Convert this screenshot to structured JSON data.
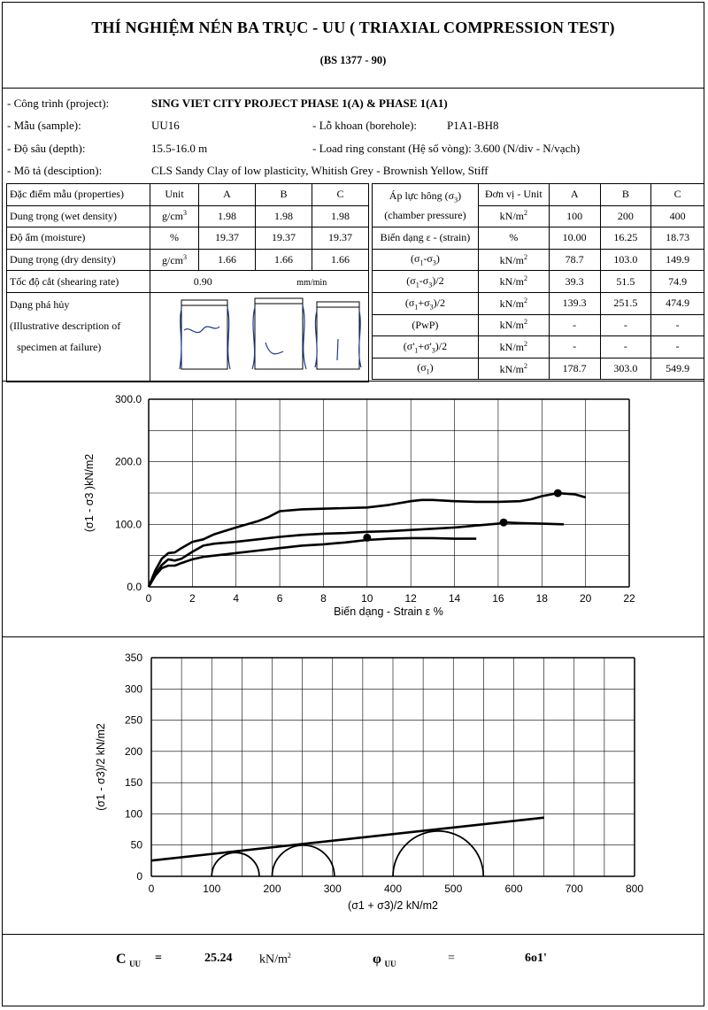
{
  "header": {
    "title": "THÍ NGHIỆM NÉN BA TRỤC - UU ( TRIAXIAL COMPRESSION TEST)",
    "standard": "(BS 1377 - 90)"
  },
  "info": {
    "project_label": "- Công trình (project):",
    "project_value": "SING VIET CITY PROJECT PHASE 1(A) & PHASE 1(A1)",
    "sample_label": "- Mẫu (sample):",
    "sample_value": "UU16",
    "borehole_label": "- Lỗ khoan (borehole):",
    "borehole_value": "P1A1-BH8",
    "depth_label": "- Độ sâu (depth):",
    "depth_value": "15.5-16.0 m",
    "ring_label": "- Load ring constant (Hệ số vòng): 3.600 (N/div - N/vạch)",
    "desc_label": "- Mô tả (desciption):",
    "desc_value": "CLS  Sandy Clay of low plasticity, Whitish Grey - Brownish Yellow, Stiff"
  },
  "props": {
    "h_props": "Đặc điểm mẫu (properties)",
    "h_unit": "Unit",
    "h_a": "A",
    "h_b": "B",
    "h_c": "C",
    "wet_label": "Dung trọng (wet density)",
    "wet_unit": "g/cm",
    "wet": [
      "1.98",
      "1.98",
      "1.98"
    ],
    "moist_label": "Độ ẩm (moisture)",
    "moist_unit": "%",
    "moist": [
      "19.37",
      "19.37",
      "19.37"
    ],
    "dry_label": "Dung trọng (dry density)",
    "dry_unit": "g/cm",
    "dry": [
      "1.66",
      "1.66",
      "1.66"
    ],
    "cube": "3",
    "rate_label": "Tốc độ cắt (shearing rate)",
    "rate_value": "0.90",
    "rate_unit": "mm/min",
    "fail_l1": "Dạng phá hủy",
    "fail_l2": "(Illustrative description of",
    "fail_l3": "specimen at failure)"
  },
  "results": {
    "h_param": "Áp lực hông (σ",
    "h_param_sub": "3",
    "h_param_close": ")",
    "h_param2": "(chamber pressure)",
    "h_unit": "Đơn vị - Unit",
    "h_a": "A",
    "h_b": "B",
    "h_c": "C",
    "unit_kn": "kN/m",
    "sq": "2",
    "rows": [
      {
        "label": "",
        "unit": "kN/m2",
        "vals": [
          "100",
          "200",
          "400"
        ]
      },
      {
        "label": "Biến dạng ε - (strain)",
        "unit": "%",
        "vals": [
          "10.00",
          "16.25",
          "18.73"
        ]
      },
      {
        "label": "(σ1-σ3)",
        "unit": "kN/m2",
        "vals": [
          "78.7",
          "103.0",
          "149.9"
        ]
      },
      {
        "label": "(σ1-σ3)/2",
        "unit": "kN/m2",
        "vals": [
          "39.3",
          "51.5",
          "74.9"
        ]
      },
      {
        "label": "(σ1+σ3)/2",
        "unit": "kN/m2",
        "vals": [
          "139.3",
          "251.5",
          "474.9"
        ]
      },
      {
        "label": "(PwP)",
        "unit": "kN/m2",
        "vals": [
          "-",
          "-",
          "-"
        ]
      },
      {
        "label": "(σ'1+σ'3)/2",
        "unit": "kN/m2",
        "vals": [
          "-",
          "-",
          "-"
        ]
      },
      {
        "label": "(σ1)",
        "unit": "kN/m2",
        "vals": [
          "178.7",
          "303.0",
          "549.9"
        ]
      }
    ]
  },
  "chart_data": [
    {
      "type": "line",
      "xlabel": "Biến dạng - Strain  ε %",
      "ylabel": "(σ1 - σ3 )kN/m2",
      "xlim": [
        0,
        22
      ],
      "ylim": [
        0,
        300
      ],
      "xticks": [
        "0",
        "2",
        "4",
        "6",
        "8",
        "10",
        "12",
        "14",
        "16",
        "18",
        "20",
        "22"
      ],
      "yticks": [
        "0.0",
        "100.0",
        "200.0",
        "300.0"
      ],
      "grid": true,
      "series": [
        {
          "x": [
            0,
            0.3,
            0.6,
            0.9,
            1.2,
            1.5,
            2,
            2.5,
            3,
            4,
            5,
            6,
            7,
            8,
            9,
            10,
            11,
            12,
            13,
            14,
            15
          ],
          "y": [
            0,
            18,
            30,
            34,
            34,
            38,
            44,
            48,
            50,
            54,
            58,
            62,
            66,
            68,
            71,
            75,
            77,
            78,
            78,
            77,
            77
          ],
          "peak": [
            10.0,
            78.7
          ]
        },
        {
          "x": [
            0,
            0.3,
            0.6,
            0.9,
            1.2,
            1.5,
            2,
            2.5,
            3,
            4,
            5,
            6,
            7,
            8,
            9,
            10,
            11,
            12,
            13,
            14,
            15,
            16,
            16.25,
            17,
            18,
            19
          ],
          "y": [
            0,
            20,
            35,
            44,
            42,
            45,
            56,
            66,
            69,
            72,
            76,
            80,
            83,
            85,
            86,
            88,
            89,
            91,
            93,
            95,
            98,
            101,
            103,
            102,
            101,
            100
          ],
          "peak": [
            16.25,
            103.0
          ]
        },
        {
          "x": [
            0,
            0.3,
            0.6,
            0.9,
            1.2,
            1.5,
            2,
            2.5,
            3,
            4,
            5,
            5.5,
            6,
            7,
            8,
            9,
            10,
            11,
            12,
            12.5,
            13,
            14,
            15,
            16,
            17,
            17.5,
            18,
            18.73,
            19.5,
            20
          ],
          "y": [
            0,
            26,
            45,
            54,
            55,
            62,
            72,
            76,
            84,
            95,
            105,
            112,
            121,
            124,
            125,
            126,
            127,
            131,
            137,
            139,
            139,
            137,
            136,
            136,
            137,
            140,
            145,
            149.9,
            148,
            143
          ],
          "peak": [
            18.73,
            149.9
          ]
        }
      ]
    },
    {
      "type": "line",
      "subtype": "mohr-circles",
      "xlabel": "(σ1 + σ3)/2  kN/m2",
      "ylabel": "(σ1 - σ3)/2 kN/m2",
      "xlim": [
        0,
        800
      ],
      "ylim": [
        0,
        350
      ],
      "xticks": [
        "0",
        "100",
        "200",
        "300",
        "400",
        "500",
        "600",
        "700",
        "800"
      ],
      "yticks": [
        "0",
        "50",
        "100",
        "150",
        "200",
        "250",
        "300",
        "350"
      ],
      "grid": true,
      "circles": [
        {
          "center": 139.3,
          "radius": 39.3
        },
        {
          "center": 251.5,
          "radius": 51.5
        },
        {
          "center": 474.9,
          "radius": 74.9
        }
      ],
      "envelope": {
        "x": [
          0,
          650
        ],
        "y": [
          25.24,
          94
        ]
      }
    }
  ],
  "summary": {
    "c_symbol": "C",
    "c_sub": "UU",
    "eq": "=",
    "c_value": "25.24",
    "c_unit": "kN/m",
    "c_unit_sup": "2",
    "phi_symbol": "φ",
    "phi_sub": "UU",
    "phi_eq": "=",
    "phi_value": "6o1'"
  }
}
